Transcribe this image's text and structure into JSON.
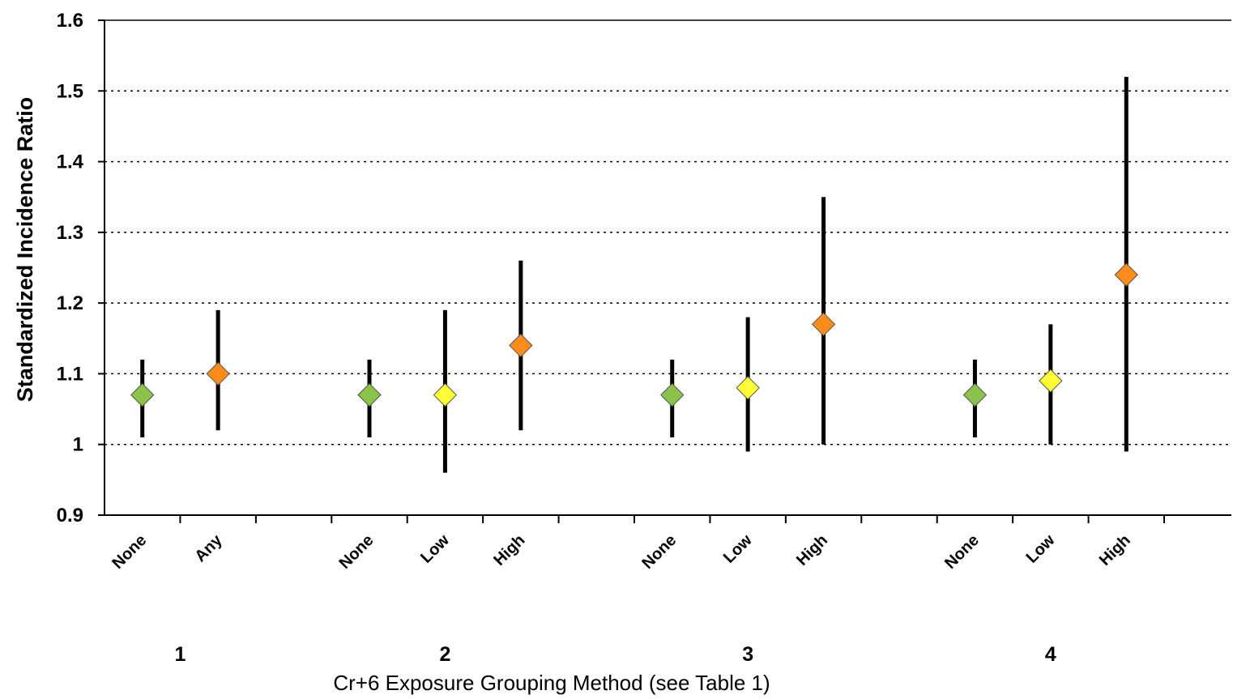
{
  "chart_data": {
    "type": "scatter",
    "ylabel": "Standardized Incidence Ratio",
    "xlabel": "Cr+6 Exposure Grouping Method (see Table 1)",
    "ylim": [
      0.9,
      1.6
    ],
    "yticks": [
      0.9,
      1,
      1.1,
      1.2,
      1.3,
      1.4,
      1.5,
      1.6
    ],
    "ytick_labels": [
      "0.9",
      "1",
      "1.1",
      "1.2",
      "1.3",
      "1.4",
      "1.5",
      "1.6"
    ],
    "grid": "horizontal dotted",
    "category_slots": 14,
    "points": [
      {
        "group": "1",
        "label": "None",
        "slot": 0,
        "value": 1.07,
        "ci_low": 1.01,
        "ci_high": 1.12,
        "color": "#8bc34a"
      },
      {
        "group": "1",
        "label": "Any",
        "slot": 1,
        "value": 1.1,
        "ci_low": 1.02,
        "ci_high": 1.19,
        "color": "#ff8c1a"
      },
      {
        "group": "2",
        "label": "None",
        "slot": 3,
        "value": 1.07,
        "ci_low": 1.01,
        "ci_high": 1.12,
        "color": "#8bc34a"
      },
      {
        "group": "2",
        "label": "Low",
        "slot": 4,
        "value": 1.07,
        "ci_low": 0.96,
        "ci_high": 1.19,
        "color": "#ffff33"
      },
      {
        "group": "2",
        "label": "High",
        "slot": 5,
        "value": 1.14,
        "ci_low": 1.02,
        "ci_high": 1.26,
        "color": "#ff8c1a"
      },
      {
        "group": "3",
        "label": "None",
        "slot": 7,
        "value": 1.07,
        "ci_low": 1.01,
        "ci_high": 1.12,
        "color": "#8bc34a"
      },
      {
        "group": "3",
        "label": "Low",
        "slot": 8,
        "value": 1.08,
        "ci_low": 0.99,
        "ci_high": 1.18,
        "color": "#ffff33"
      },
      {
        "group": "3",
        "label": "High",
        "slot": 9,
        "value": 1.17,
        "ci_low": 1.0,
        "ci_high": 1.35,
        "color": "#ff8c1a"
      },
      {
        "group": "4",
        "label": "None",
        "slot": 11,
        "value": 1.07,
        "ci_low": 1.01,
        "ci_high": 1.12,
        "color": "#8bc34a"
      },
      {
        "group": "4",
        "label": "Low",
        "slot": 12,
        "value": 1.09,
        "ci_low": 1.0,
        "ci_high": 1.17,
        "color": "#ffff33"
      },
      {
        "group": "4",
        "label": "High",
        "slot": 13,
        "value": 1.24,
        "ci_low": 0.99,
        "ci_high": 1.52,
        "color": "#ff8c1a"
      }
    ],
    "groups": [
      {
        "label": "1",
        "slot_center": 0.5
      },
      {
        "label": "2",
        "slot_center": 4.0
      },
      {
        "label": "3",
        "slot_center": 8.0
      },
      {
        "label": "4",
        "slot_center": 12.0
      }
    ]
  }
}
